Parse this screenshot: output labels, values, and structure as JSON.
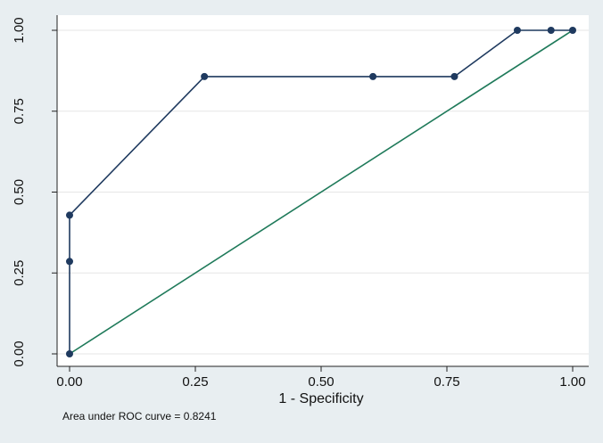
{
  "chart_data": {
    "type": "line",
    "xlabel": "1 - Specificity",
    "ylabel": "",
    "xlim": [
      0,
      1
    ],
    "ylim": [
      0,
      1
    ],
    "x_ticks": [
      "0.00",
      "0.25",
      "0.50",
      "0.75",
      "1.00"
    ],
    "y_ticks": [
      "0.00",
      "0.25",
      "0.50",
      "0.75",
      "1.00"
    ],
    "grid": true,
    "series": [
      {
        "color": "#1f3a5f",
        "markers": true,
        "x": [
          0.0,
          0.0,
          0.0,
          0.268,
          0.603,
          0.765,
          0.89,
          0.957,
          1.0
        ],
        "y": [
          0.0,
          0.2857,
          0.4286,
          0.8571,
          0.8571,
          0.8571,
          1.0,
          1.0,
          1.0
        ]
      },
      {
        "color": "#1f7a5a",
        "markers": false,
        "x": [
          0.0,
          1.0
        ],
        "y": [
          0.0,
          1.0
        ]
      }
    ],
    "note": "Area under ROC curve = 0.8241"
  }
}
